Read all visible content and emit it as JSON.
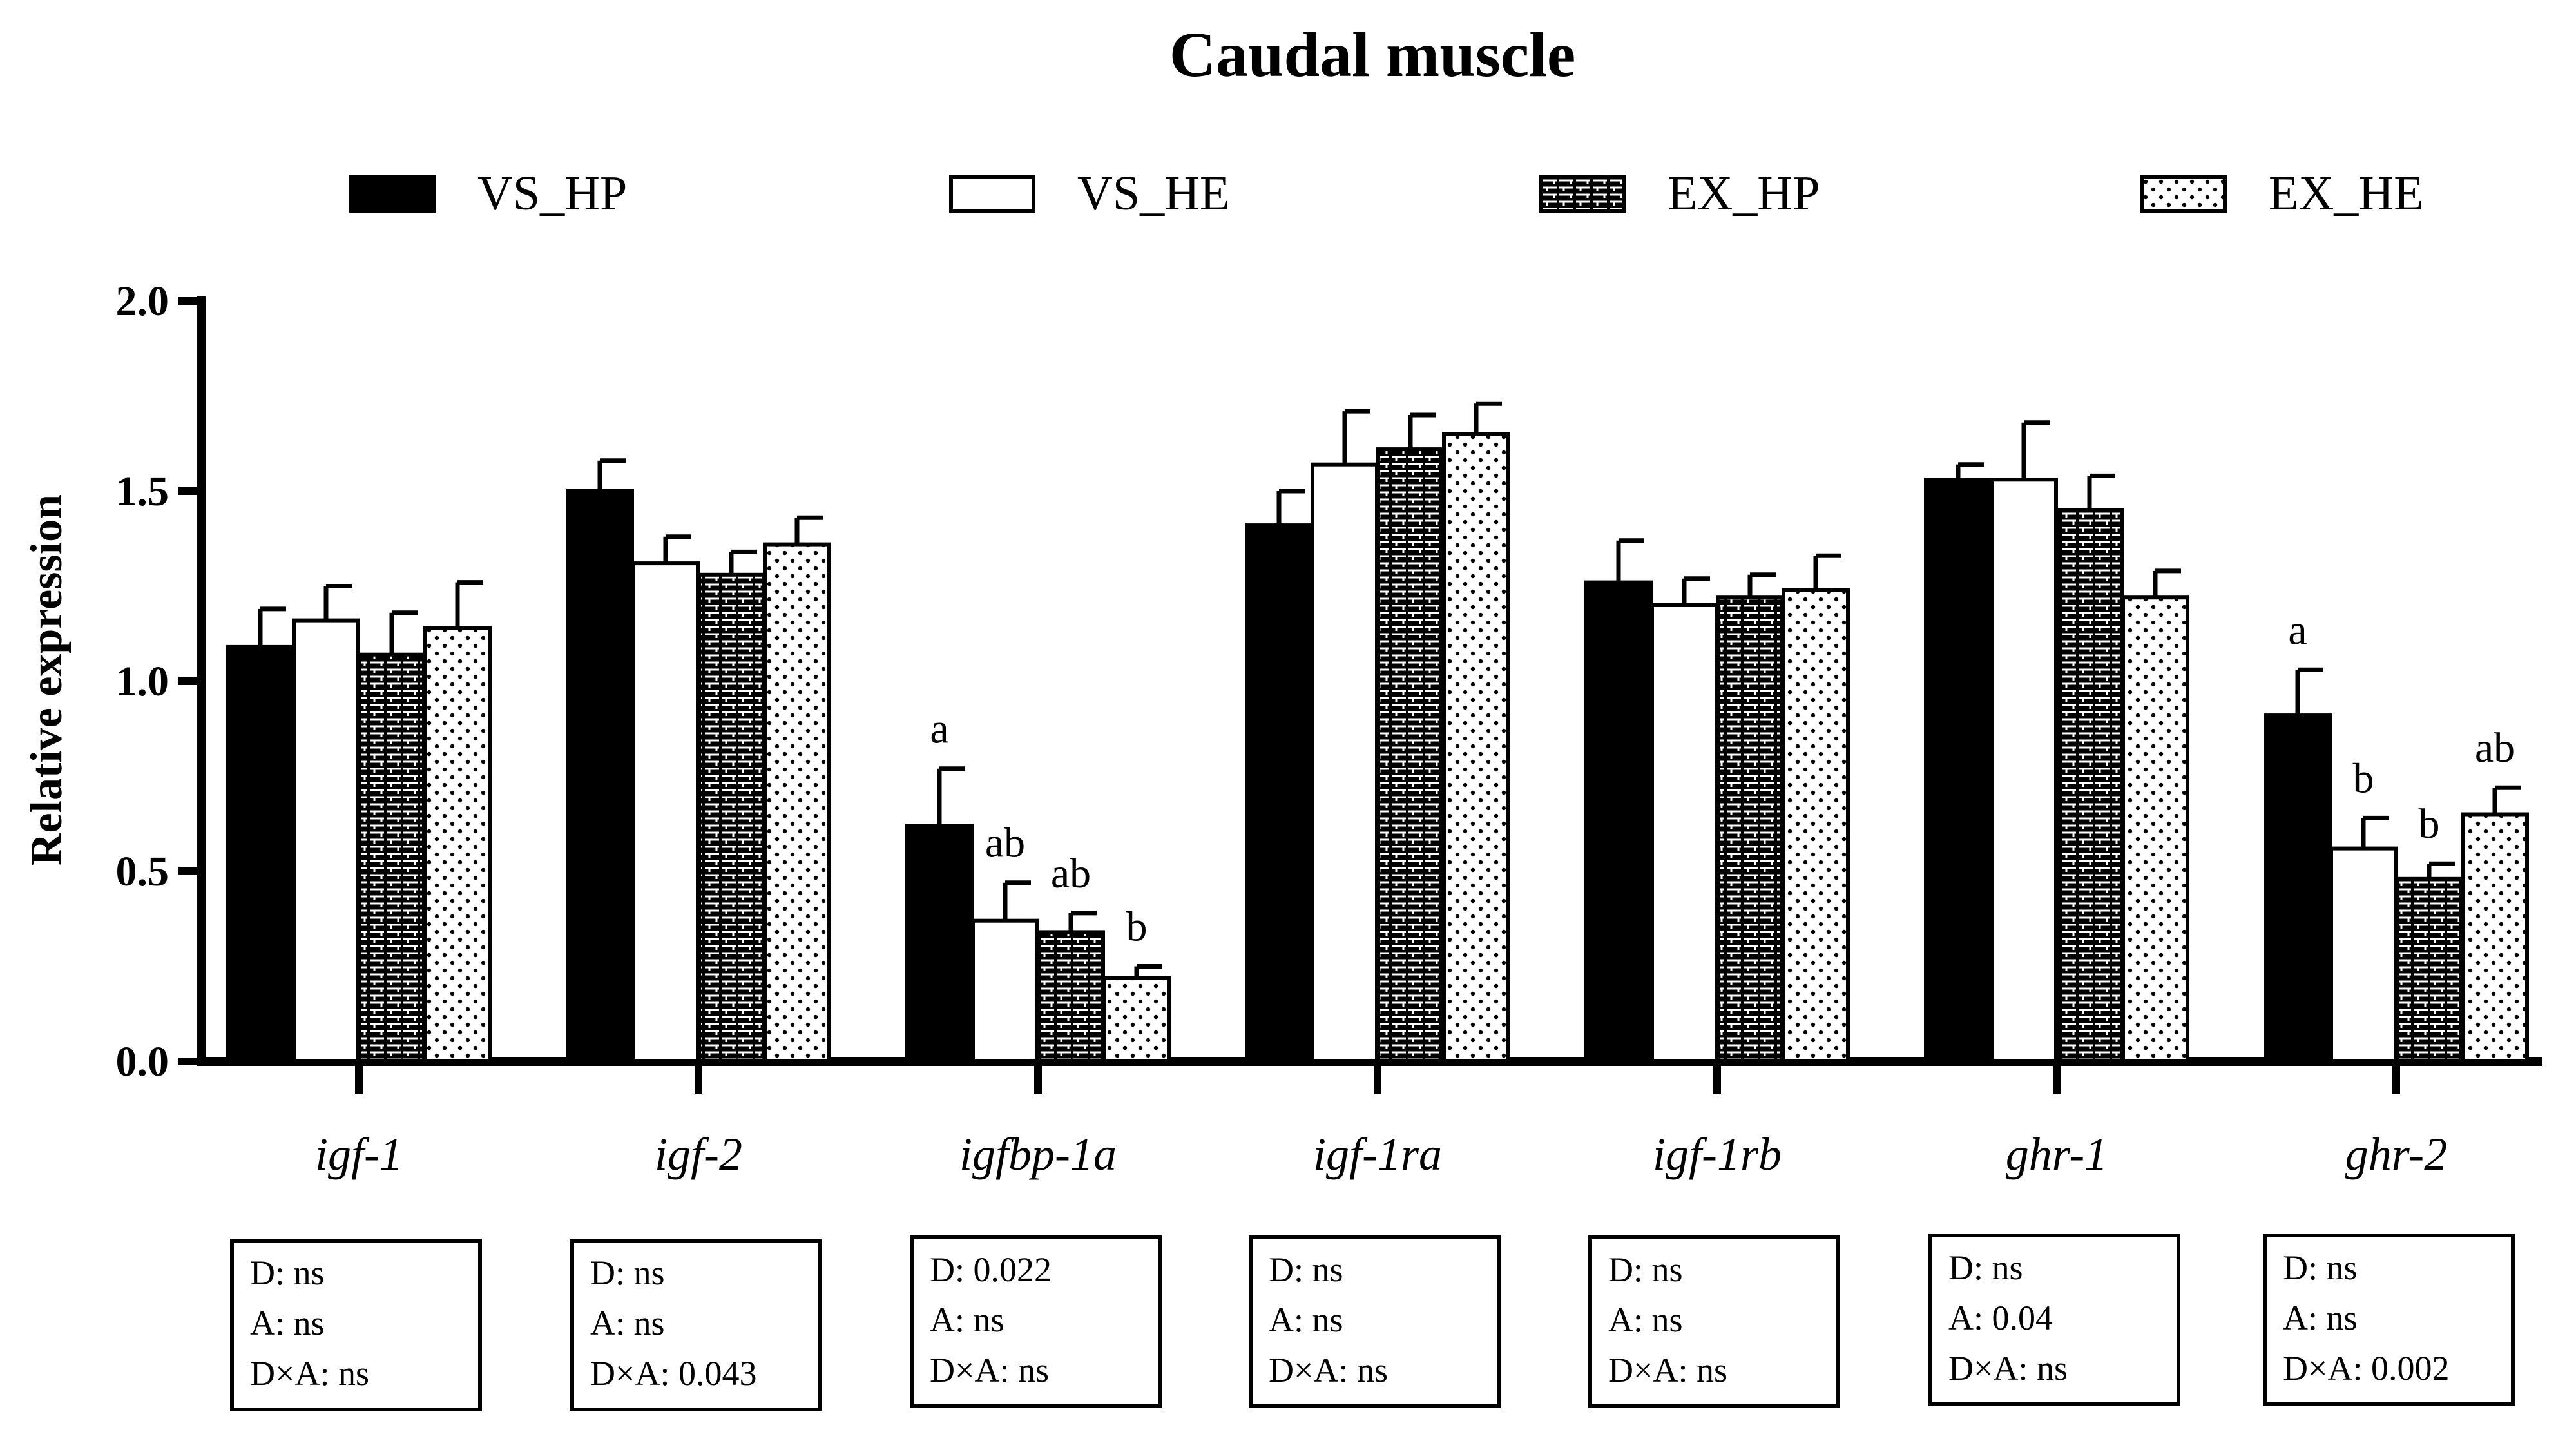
{
  "chart_data": {
    "type": "bar",
    "title": "Caudal muscle",
    "xlabel": "",
    "ylabel": "Relative expression",
    "ylim": [
      0,
      2.0
    ],
    "yticks": [
      "0.0",
      "0.5",
      "1.0",
      "1.5",
      "2.0"
    ],
    "grid": false,
    "legend_position": "top",
    "categories": [
      "igf-1",
      "igf-2",
      "igfbp-1a",
      "igf-1ra",
      "igf-1rb",
      "ghr-1",
      "ghr-2"
    ],
    "series": [
      {
        "name": "VS_HP",
        "pattern": "solid",
        "values": [
          1.09,
          1.5,
          0.62,
          1.41,
          1.26,
          1.53,
          0.91
        ],
        "errors": [
          0.1,
          0.08,
          0.15,
          0.09,
          0.11,
          0.04,
          0.12
        ]
      },
      {
        "name": "VS_HE",
        "pattern": "white",
        "values": [
          1.16,
          1.31,
          0.37,
          1.57,
          1.2,
          1.53,
          0.56
        ],
        "errors": [
          0.09,
          0.07,
          0.1,
          0.14,
          0.07,
          0.15,
          0.08
        ]
      },
      {
        "name": "EX_HP",
        "pattern": "bricks",
        "values": [
          1.07,
          1.28,
          0.34,
          1.61,
          1.22,
          1.45,
          0.48
        ],
        "errors": [
          0.11,
          0.06,
          0.05,
          0.09,
          0.06,
          0.09,
          0.04
        ]
      },
      {
        "name": "EX_HE",
        "pattern": "dots",
        "values": [
          1.14,
          1.36,
          0.22,
          1.65,
          1.24,
          1.22,
          0.65
        ],
        "errors": [
          0.12,
          0.07,
          0.03,
          0.08,
          0.09,
          0.07,
          0.07
        ]
      }
    ],
    "significance_letters": [
      [
        "",
        "",
        "",
        ""
      ],
      [
        "",
        "",
        "",
        ""
      ],
      [
        "a",
        "ab",
        "ab",
        "b"
      ],
      [
        "",
        "",
        "",
        ""
      ],
      [
        "",
        "",
        "",
        ""
      ],
      [
        "",
        "",
        "",
        ""
      ],
      [
        "a",
        "b",
        "b",
        "ab"
      ]
    ],
    "stats_boxes": [
      [
        "D: ns",
        "A: ns",
        "D×A: ns"
      ],
      [
        "D: ns",
        "A: ns",
        "D×A: 0.043"
      ],
      [
        "D: 0.022",
        "A: ns",
        "D×A: ns"
      ],
      [
        "D: ns",
        "A: ns",
        "D×A: ns"
      ],
      [
        "D: ns",
        "A: ns",
        "D×A: ns"
      ],
      [
        "D: ns",
        "A: 0.04",
        "D×A: ns"
      ],
      [
        "D: ns",
        "A: ns",
        "D×A: 0.002"
      ]
    ]
  }
}
